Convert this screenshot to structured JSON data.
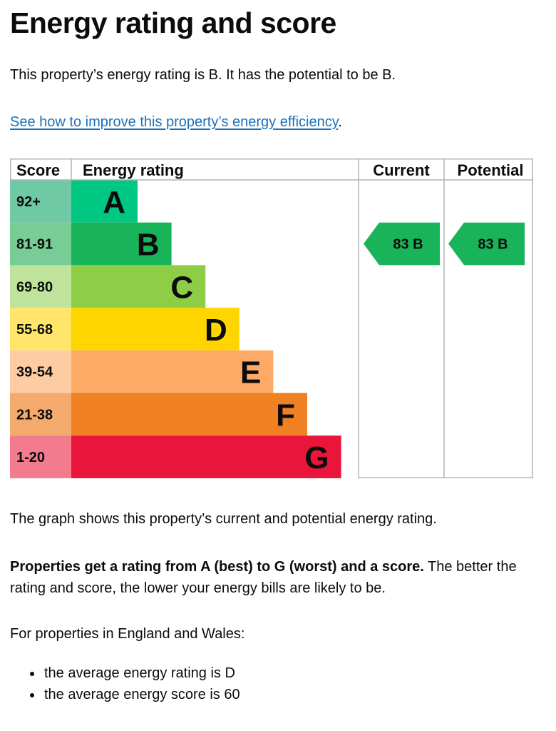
{
  "page_title": "Energy rating and score",
  "intro": "This property’s energy rating is B. It has the potential to be B.",
  "improve_link": "See how to improve this property’s energy efficiency",
  "improve_suffix": ".",
  "chart": {
    "headers": {
      "score": "Score",
      "rating": "Energy rating",
      "current": "Current",
      "potential": "Potential"
    },
    "bands": [
      {
        "score": "92+",
        "letter": "A",
        "color": "#00c781",
        "score_bg": "#6ec9a4"
      },
      {
        "score": "81-91",
        "letter": "B",
        "color": "#19b459",
        "score_bg": "#77cd95"
      },
      {
        "score": "69-80",
        "letter": "C",
        "color": "#8dce46",
        "score_bg": "#bfe39a"
      },
      {
        "score": "55-68",
        "letter": "D",
        "color": "#ffd500",
        "score_bg": "#ffe66b"
      },
      {
        "score": "39-54",
        "letter": "E",
        "color": "#fcaa65",
        "score_bg": "#fdcca3"
      },
      {
        "score": "21-38",
        "letter": "F",
        "color": "#ef8023",
        "score_bg": "#f4aa6c"
      },
      {
        "score": "1-20",
        "letter": "G",
        "color": "#e9153b",
        "score_bg": "#f27b8e"
      }
    ],
    "current": {
      "score": 83,
      "letter": "B",
      "color": "#19b459"
    },
    "potential": {
      "score": 83,
      "letter": "B",
      "color": "#19b459"
    }
  },
  "graph_description": "The graph shows this property’s current and potential energy rating.",
  "ratings_bold": "Properties get a rating from A (best) to G (worst) and a score.",
  "ratings_rest": " The better the rating and score, the lower your energy bills are likely to be.",
  "england_wales": "For properties in England and Wales:",
  "averages": [
    "the average energy rating is D",
    "the average energy score is 60"
  ]
}
